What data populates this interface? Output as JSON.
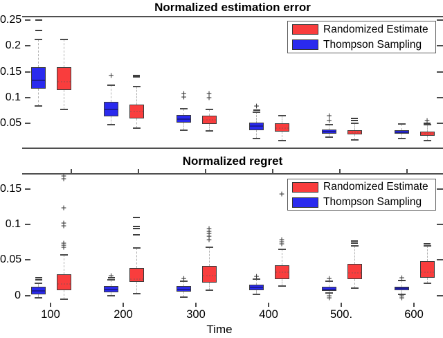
{
  "style": {
    "background": "#ffffff",
    "axis_color": "#4f4f4f",
    "text_color": "#000000",
    "red": "#f93d3d",
    "blue": "#2a2aee",
    "red_median": "#c84545",
    "blue_median": "#1c1c99",
    "whisker_color": "#b3b3b3",
    "cap_color": "#4a4a4a",
    "outlier_color": "#3d3d3d",
    "legend_border": "#5a5a5a"
  },
  "chart_data": [
    {
      "type": "boxplot",
      "title": "Normalized estimation error",
      "xlabel": "",
      "ylabel": "",
      "categories": [
        100,
        200,
        300,
        400,
        500,
        600
      ],
      "ylim": [
        0.003,
        0.257
      ],
      "yticks": [
        0.05,
        0.1,
        0.15,
        0.2,
        0.25
      ],
      "ytick_labels": [
        "0.05",
        "0.1",
        "0.15",
        "0.2",
        "0.25"
      ],
      "grid": false,
      "legend_position": "top-right",
      "legend": [
        {
          "label": "Randomized Estimate",
          "color": "#f93d3d"
        },
        {
          "label": "Thompson Sampling",
          "color": "#2a2aee"
        }
      ],
      "series": [
        {
          "name": "Thompson Sampling",
          "color": "#2a2aee",
          "boxes": [
            {
              "lo": 0.084,
              "q1": 0.117,
              "med": 0.133,
              "q3": 0.159,
              "hi": 0.212,
              "plus": [],
              "dash": [
                0.25,
                0.23
              ]
            },
            {
              "lo": 0.047,
              "q1": 0.063,
              "med": 0.077,
              "q3": 0.092,
              "hi": 0.124,
              "plus": [
                0.141
              ],
              "dash": []
            },
            {
              "lo": 0.036,
              "q1": 0.051,
              "med": 0.058,
              "q3": 0.066,
              "hi": 0.078,
              "plus": [
                0.106,
                0.1
              ],
              "dash": []
            },
            {
              "lo": 0.02,
              "q1": 0.036,
              "med": 0.044,
              "q3": 0.051,
              "hi": 0.072,
              "plus": [
                0.082
              ],
              "dash": [
                0.075
              ]
            },
            {
              "lo": 0.023,
              "q1": 0.03,
              "med": 0.034,
              "q3": 0.038,
              "hi": 0.047,
              "plus": [
                0.063,
                0.054
              ],
              "dash": []
            },
            {
              "lo": 0.02,
              "q1": 0.03,
              "med": 0.033,
              "q3": 0.036,
              "hi": 0.049,
              "plus": [],
              "dash": []
            }
          ]
        },
        {
          "name": "Randomized Estimate",
          "color": "#f93d3d",
          "boxes": [
            {
              "lo": 0.077,
              "q1": 0.115,
              "med": 0.131,
              "q3": 0.159,
              "hi": 0.213,
              "plus": [],
              "dash": []
            },
            {
              "lo": 0.04,
              "q1": 0.06,
              "med": 0.073,
              "q3": 0.086,
              "hi": 0.121,
              "plus": [],
              "dash": [
                0.143,
                0.14
              ]
            },
            {
              "lo": 0.035,
              "q1": 0.049,
              "med": 0.057,
              "q3": 0.065,
              "hi": 0.077,
              "plus": [
                0.107,
                0.099
              ],
              "dash": []
            },
            {
              "lo": 0.016,
              "q1": 0.034,
              "med": 0.04,
              "q3": 0.05,
              "hi": 0.065,
              "plus": [],
              "dash": []
            },
            {
              "lo": 0.018,
              "q1": 0.028,
              "med": 0.032,
              "q3": 0.036,
              "hi": 0.05,
              "plus": [],
              "dash": [
                0.059,
                0.055
              ]
            },
            {
              "lo": 0.016,
              "q1": 0.026,
              "med": 0.03,
              "q3": 0.034,
              "hi": 0.047,
              "plus": [
                0.054
              ],
              "dash": [
                0.05
              ]
            }
          ]
        }
      ]
    },
    {
      "type": "boxplot",
      "title": "Normalized regret",
      "xlabel": "Time",
      "ylabel": "",
      "categories": [
        100,
        200,
        300,
        400,
        500,
        600
      ],
      "xtick_labels": [
        "100",
        "200",
        "300",
        "400",
        "500.",
        "600"
      ],
      "ylim": [
        -0.009,
        0.172
      ],
      "yticks": [
        0,
        0.05,
        0.1,
        0.15
      ],
      "ytick_labels": [
        "0",
        "0.05",
        "0.1",
        "0.15"
      ],
      "grid": false,
      "legend_position": "top-right",
      "legend": [
        {
          "label": "Randomized Estimate",
          "color": "#f93d3d"
        },
        {
          "label": "Thompson Sampling",
          "color": "#2a2aee"
        }
      ],
      "series": [
        {
          "name": "Thompson Sampling",
          "color": "#2a2aee",
          "boxes": [
            {
              "lo": -0.003,
              "q1": 0.002,
              "med": 0.007,
              "q3": 0.012,
              "hi": 0.017,
              "plus": [],
              "dash": [
                0.025,
                0.022
              ]
            },
            {
              "lo": 0,
              "q1": 0.005,
              "med": 0.009,
              "q3": 0.013,
              "hi": 0.022,
              "plus": [
                0.027
              ],
              "dash": [
                0.025
              ]
            },
            {
              "lo": -0.002,
              "q1": 0.006,
              "med": 0.009,
              "q3": 0.013,
              "hi": 0.02,
              "plus": [
                0.023
              ],
              "dash": []
            },
            {
              "lo": 0.002,
              "q1": 0.008,
              "med": 0.011,
              "q3": 0.015,
              "hi": 0.023,
              "plus": [
                0.026
              ],
              "dash": []
            },
            {
              "lo": 0.004,
              "q1": 0.007,
              "med": 0.009,
              "q3": 0.012,
              "hi": 0.02,
              "plus": [
                0.023,
                -0.001,
                -0.004
              ],
              "dash": []
            },
            {
              "lo": 0.002,
              "q1": 0.008,
              "med": 0.01,
              "q3": 0.012,
              "hi": 0.021,
              "plus": [
                0.024,
                -0.001,
                -0.004
              ],
              "dash": [
                0.021
              ]
            }
          ]
        },
        {
          "name": "Randomized Estimate",
          "color": "#f93d3d",
          "boxes": [
            {
              "lo": -0.005,
              "q1": 0.008,
              "med": 0.016,
              "q3": 0.03,
              "hi": 0.057,
              "plus": [
                0.167,
                0.163,
                0.122,
                0.101,
                0.097,
                0.073,
                0.07,
                0.067
              ],
              "dash": []
            },
            {
              "lo": 0.003,
              "q1": 0.019,
              "med": 0.023,
              "q3": 0.039,
              "hi": 0.067,
              "plus": [],
              "dash": [
                0.11,
                0.097,
                0.094,
                0.085
              ]
            },
            {
              "lo": 0.008,
              "q1": 0.018,
              "med": 0.028,
              "q3": 0.042,
              "hi": 0.068,
              "plus": [
                0.093,
                0.089,
                0.086,
                0.082,
                0.078
              ],
              "dash": []
            },
            {
              "lo": 0.013,
              "q1": 0.023,
              "med": 0.033,
              "q3": 0.043,
              "hi": 0.065,
              "plus": [
                0.142,
                0.078,
                0.075,
                0.072
              ],
              "dash": []
            },
            {
              "lo": 0.01,
              "q1": 0.023,
              "med": 0.032,
              "q3": 0.045,
              "hi": 0.07,
              "plus": [],
              "dash": [
                0.077,
                0.074
              ]
            },
            {
              "lo": 0.017,
              "q1": 0.025,
              "med": 0.033,
              "q3": 0.048,
              "hi": 0.07,
              "plus": [],
              "dash": [
                0.073
              ]
            }
          ]
        }
      ]
    }
  ]
}
